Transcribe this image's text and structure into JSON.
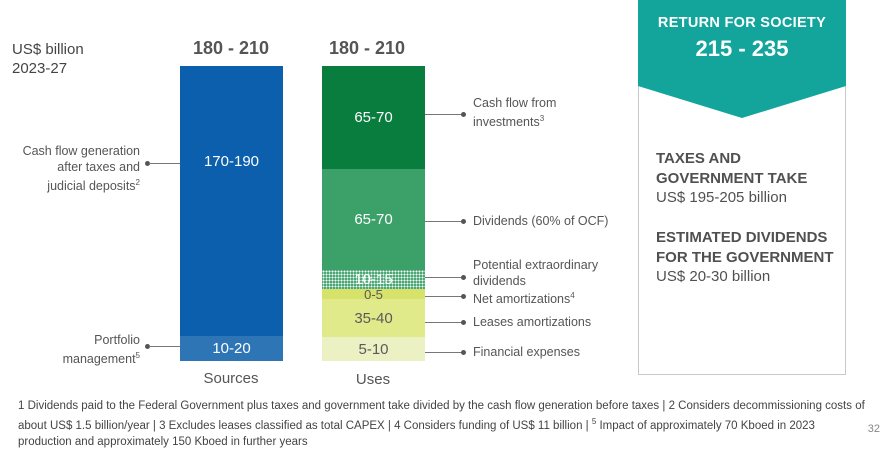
{
  "unit_label_line1": "US$ billion",
  "unit_label_line2": "2023-27",
  "chart_data": {
    "type": "bar",
    "stacked": true,
    "categories": [
      "Sources",
      "Uses"
    ],
    "totals": [
      "180 - 210",
      "180 - 210"
    ],
    "sources": [
      {
        "name": "Portfolio management",
        "label": "10-20",
        "range": [
          10,
          20
        ],
        "color": "#2e75b6"
      },
      {
        "name": "Cash flow generation after taxes and judicial deposits",
        "label": "170-190",
        "range": [
          170,
          190
        ],
        "color": "#0b5fad"
      }
    ],
    "uses": [
      {
        "name": "Financial expenses",
        "label": "5-10",
        "range": [
          5,
          10
        ],
        "color": "#ebf1c3"
      },
      {
        "name": "Leases amortizations",
        "label": "35-40",
        "range": [
          35,
          40
        ],
        "color": "#e0ea8a"
      },
      {
        "name": "Net amortizations",
        "label": "0-5",
        "range": [
          0,
          5
        ],
        "color": "#d7e26a"
      },
      {
        "name": "Potential extraordinary dividends",
        "label": "10-15",
        "range": [
          10,
          15
        ],
        "color": "#3ba169"
      },
      {
        "name": "Dividends (60% of OCF)",
        "label": "65-70",
        "range": [
          65,
          70
        ],
        "color": "#3ba169"
      },
      {
        "name": "Cash flow from investments",
        "label": "65-70",
        "range": [
          65,
          70
        ],
        "color": "#097d3d"
      }
    ],
    "left_annotations": {
      "cash_flow_gen": [
        "Cash flow generation",
        "after taxes and",
        "judicial deposits"
      ],
      "cash_flow_gen_sup": "2",
      "portfolio": [
        "Portfolio",
        "management"
      ],
      "portfolio_sup": "5"
    },
    "right_annotations": {
      "cfi": [
        "Cash flow from",
        "investments"
      ],
      "cfi_sup": "3",
      "dividends": "Dividends (60% of OCF)",
      "extra_div": [
        "Potential extraordinary",
        "dividends"
      ],
      "net_amort": "Net amortizations",
      "net_amort_sup": "4",
      "leases": "Leases amortizations",
      "fin_exp": "Financial expenses"
    }
  },
  "society_panel": {
    "title": "RETURN FOR SOCIETY",
    "value": "215 - 235",
    "taxes_head_1": "TAXES AND",
    "taxes_head_2": "GOVERNMENT TAKE",
    "taxes_value": "US$ 195-205 billion",
    "div_head_1": "ESTIMATED DIVIDENDS",
    "div_head_2": "FOR THE GOVERNMENT",
    "div_value": "US$ 20-30 billion",
    "colors": {
      "ribbon": "#13a59c"
    }
  },
  "footnote": {
    "part1": "1 Dividends paid to the Federal Government plus taxes and government take divided by the cash flow generation before taxes | 2 Considers decommissioning costs of about US$ 1.5 billion/year | 3 Excludes leases classified as total CAPEX | 4 Considers funding of US$ 11 billion | ",
    "sup5": "5",
    "part2": " Impact of approximately 70 Kboed in 2023 production and approximately 150 Kboed in further years"
  },
  "page_number": "32"
}
